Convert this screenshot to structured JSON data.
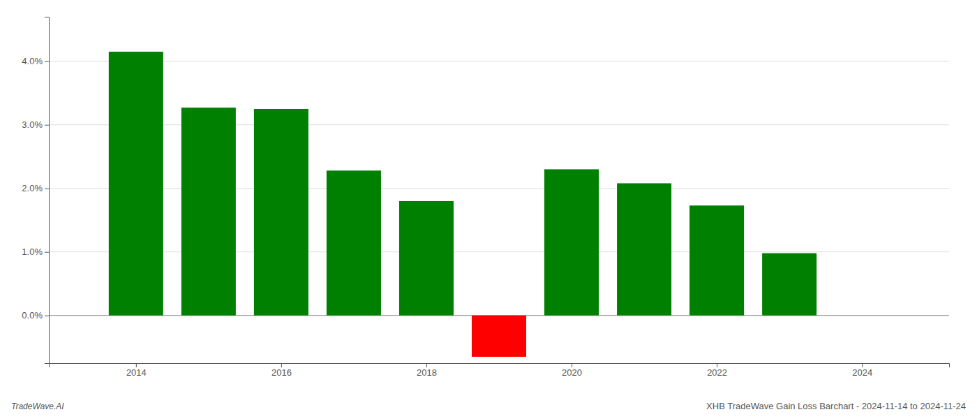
{
  "chart_data": {
    "type": "bar",
    "title": "XHB TradeWave Gain Loss Barchart - 2024-11-14 to 2024-11-24",
    "annotations": [
      "TradeWave.AI"
    ],
    "x": [
      2014,
      2015,
      2016,
      2017,
      2018,
      2019,
      2020,
      2021,
      2022,
      2023
    ],
    "values": [
      0.0415,
      0.0327,
      0.0325,
      0.0228,
      0.018,
      -0.0065,
      0.023,
      0.0208,
      0.0173,
      0.0098
    ],
    "colors": [
      "#008000",
      "#008000",
      "#008000",
      "#008000",
      "#008000",
      "#ff0000",
      "#008000",
      "#008000",
      "#008000",
      "#008000"
    ],
    "xlim": [
      2012.8,
      2025.2
    ],
    "xticks": [
      2014,
      2016,
      2018,
      2020,
      2022,
      2024
    ],
    "ylim": [
      -0.0075,
      0.047
    ],
    "yticks": [
      {
        "value": 0.0,
        "label": "0.0%"
      },
      {
        "value": 0.01,
        "label": "1.0%"
      },
      {
        "value": 0.02,
        "label": "2.0%"
      },
      {
        "value": 0.03,
        "label": "3.0%"
      },
      {
        "value": 0.04,
        "label": "4.0%"
      }
    ],
    "grid": true
  }
}
